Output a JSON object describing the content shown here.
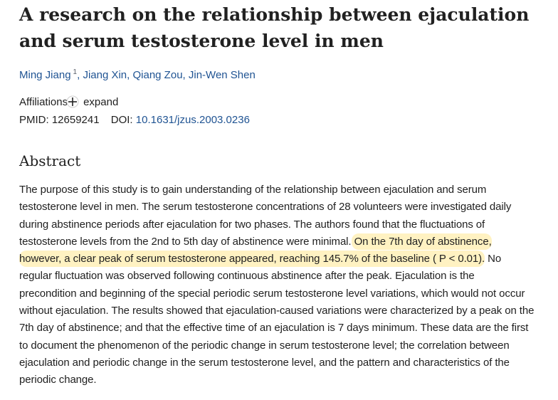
{
  "header": {
    "title": "A research on the relationship between ejaculation and serum testosterone level in men"
  },
  "authors": [
    {
      "name": "Ming Jiang",
      "affiliation_ref": "1"
    },
    {
      "name": ", Jiang Xin"
    },
    {
      "name": ", Qiang Zou"
    },
    {
      "name": ", Jin-Wen Shen"
    }
  ],
  "affiliations": {
    "label": "Affiliations",
    "toggle": "expand"
  },
  "identifiers": {
    "pmid_label": "PMID:",
    "pmid": "12659241",
    "doi_label": "DOI:",
    "doi": "10.1631/jzus.2003.0236"
  },
  "abstract": {
    "heading": "Abstract",
    "segments": [
      {
        "text": "The purpose of this study is to gain understanding of the relationship between ejaculation and serum testosterone level in men. The serum testosterone concentrations of 28 volunteers were investigated daily during abstinence periods after ejaculation for two phases. The authors found that the fluctuations of testosterone levels from the 2nd to 5th day of abstinence were minimal.",
        "highlighted": false
      },
      {
        "text": " On the 7th day of abstinence, however, a clear peak of serum testosterone appeared, reaching 145.7% of the baseline ( P < 0.01).",
        "highlighted": true
      },
      {
        "text": " No regular fluctuation was observed following continuous abstinence after the peak. Ejaculation is the precondition and beginning of the special periodic serum testosterone level variations, which would not occur without ejaculation. The results showed that ejaculation-caused variations were characterized by a peak on the 7th day of abstinence; and that the effective time of an ejaculation is 7 days minimum. These data are the first to document the phenomenon of the periodic change in serum testosterone level; the correlation between ejaculation and periodic change in the serum testosterone level, and the pattern and characteristics of the periodic change.",
        "highlighted": false
      }
    ]
  }
}
